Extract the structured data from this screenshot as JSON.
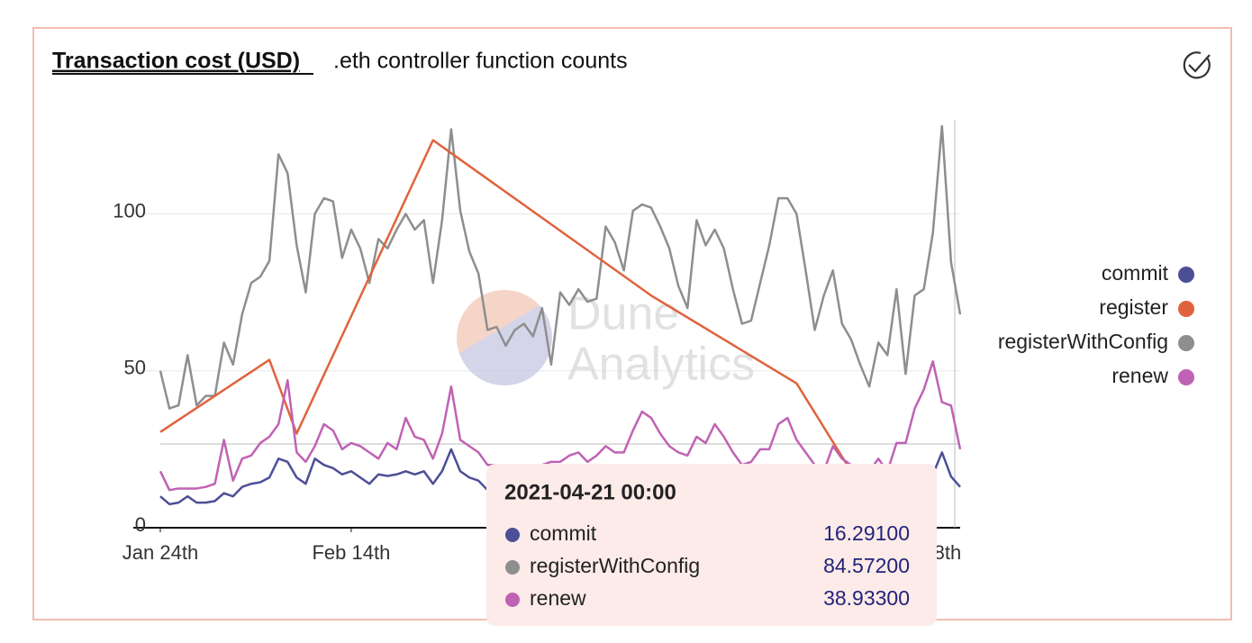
{
  "tabs": [
    "Transaction cost (USD)",
    ".eth controller function counts"
  ],
  "watermark": [
    "Dune",
    "Analytics"
  ],
  "tooltip": {
    "title": "2021-04-21 00:00",
    "rows": [
      {
        "name": "commit",
        "value": "16.29100"
      },
      {
        "name": "registerWithConfig",
        "value": "84.57200"
      },
      {
        "name": "renew",
        "value": "38.93300"
      }
    ]
  },
  "chart_data": {
    "type": "line",
    "x": [
      "2021-01-24",
      "2021-01-25",
      "2021-01-26",
      "2021-01-27",
      "2021-01-28",
      "2021-01-29",
      "2021-01-30",
      "2021-01-31",
      "2021-02-01",
      "2021-02-02",
      "2021-02-03",
      "2021-02-04",
      "2021-02-05",
      "2021-02-06",
      "2021-02-07",
      "2021-02-08",
      "2021-02-09",
      "2021-02-10",
      "2021-02-11",
      "2021-02-12",
      "2021-02-13",
      "2021-02-14",
      "2021-02-15",
      "2021-02-16",
      "2021-02-17",
      "2021-02-18",
      "2021-02-19",
      "2021-02-20",
      "2021-02-21",
      "2021-02-22",
      "2021-02-23",
      "2021-02-24",
      "2021-02-25",
      "2021-02-26",
      "2021-02-27",
      "2021-02-28",
      "2021-03-01",
      "2021-03-02",
      "2021-03-03",
      "2021-03-04",
      "2021-03-05",
      "2021-03-06",
      "2021-03-07",
      "2021-03-08",
      "2021-03-09",
      "2021-03-10",
      "2021-03-11",
      "2021-03-12",
      "2021-03-13",
      "2021-03-14",
      "2021-03-15",
      "2021-03-16",
      "2021-03-17",
      "2021-03-18",
      "2021-03-19",
      "2021-03-20",
      "2021-03-21",
      "2021-03-22",
      "2021-03-23",
      "2021-03-24",
      "2021-03-25",
      "2021-03-26",
      "2021-03-27",
      "2021-03-28",
      "2021-03-29",
      "2021-03-30",
      "2021-03-31",
      "2021-04-01",
      "2021-04-02",
      "2021-04-03",
      "2021-04-04",
      "2021-04-05",
      "2021-04-06",
      "2021-04-07",
      "2021-04-08",
      "2021-04-09",
      "2021-04-10",
      "2021-04-11",
      "2021-04-12",
      "2021-04-13",
      "2021-04-14",
      "2021-04-15",
      "2021-04-16",
      "2021-04-17",
      "2021-04-18",
      "2021-04-19",
      "2021-04-20",
      "2021-04-21",
      "2021-04-22"
    ],
    "xticks": [
      {
        "value": "2021-01-24",
        "label": "Jan 24th"
      },
      {
        "value": "2021-02-14",
        "label": "Feb 14th"
      },
      {
        "value": "2021-04-18",
        "label": "Apr 18th"
      }
    ],
    "ylim": [
      0,
      130
    ],
    "yticks": [
      0,
      50,
      100
    ],
    "grid": true,
    "series": [
      {
        "name": "commit",
        "color": "#4d4f96",
        "values": [
          10,
          7.5,
          8,
          10,
          8,
          8,
          8.5,
          11,
          10,
          13,
          14,
          14.5,
          16,
          22,
          21,
          16,
          14,
          22,
          20,
          19,
          17,
          18,
          16,
          14,
          17,
          16.5,
          17,
          18,
          17,
          18,
          14,
          18,
          25,
          18,
          16,
          15,
          12,
          11.5,
          11,
          12,
          12,
          12,
          13,
          12,
          12,
          13,
          13,
          13,
          13,
          15,
          14,
          13,
          15,
          16,
          15,
          14,
          13,
          13,
          12,
          15,
          14,
          15,
          14,
          13,
          12,
          12,
          13,
          14,
          16,
          16,
          15,
          13,
          12,
          13,
          14,
          13,
          12,
          11,
          10,
          11,
          11,
          12,
          13,
          12,
          15,
          17,
          24,
          16.291,
          13
        ]
      },
      {
        "name": "register",
        "color": "#e0633d",
        "x": [
          "2021-01-24",
          "2021-02-05",
          "2021-02-08",
          "2021-02-23",
          "2021-03-19",
          "2021-04-04",
          "2021-04-10"
        ],
        "values": [
          30.5,
          53.5,
          30,
          123.5,
          74,
          46,
          18
        ]
      },
      {
        "name": "registerWithConfig",
        "color": "#8e8e8e",
        "values": [
          50,
          38,
          39,
          55,
          39,
          42,
          42,
          59,
          52,
          68,
          78,
          80,
          85,
          119,
          113,
          90,
          75,
          100,
          105,
          104,
          86,
          95,
          89,
          78,
          92,
          89,
          95,
          100,
          95,
          98,
          78,
          98,
          127,
          101,
          88,
          81,
          63,
          64,
          58,
          63,
          65,
          61,
          70,
          52,
          75,
          71,
          76,
          72,
          73,
          96,
          91,
          82,
          101,
          103,
          102,
          96,
          89,
          77,
          70,
          98,
          90,
          95,
          89,
          76,
          65,
          66,
          78,
          90,
          105,
          105,
          100,
          82,
          63,
          74,
          82,
          65,
          60,
          52,
          45,
          59,
          55,
          76,
          49,
          74,
          76,
          94,
          128,
          84.572,
          68
        ]
      },
      {
        "name": "renew",
        "color": "#c062b4",
        "values": [
          18,
          12,
          12.5,
          12.5,
          12.5,
          13,
          14,
          28,
          15,
          22,
          23,
          27,
          29,
          33,
          47,
          24,
          21,
          26,
          33,
          31,
          25,
          27,
          26,
          24,
          22,
          27,
          25,
          35,
          29,
          28,
          22,
          30,
          45,
          28,
          26,
          24,
          20,
          20,
          19,
          18,
          18,
          19,
          20,
          21,
          21,
          23,
          24,
          21,
          23,
          26,
          24,
          24,
          31,
          37,
          35,
          30,
          26,
          24,
          23,
          29,
          27,
          33,
          29,
          24,
          20,
          21,
          25,
          25,
          33,
          35,
          28,
          24,
          20,
          18,
          26,
          22,
          20,
          19,
          18,
          22,
          18,
          27,
          27,
          38,
          44,
          53,
          40,
          38.933,
          25
        ]
      }
    ]
  }
}
